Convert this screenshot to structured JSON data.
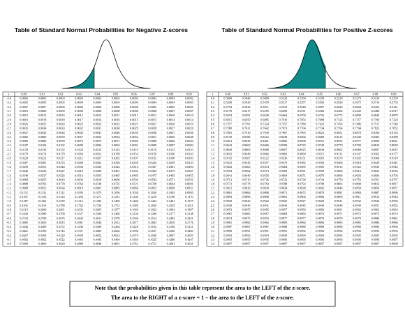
{
  "left": {
    "title": "Table of Standard Normal Probabilities for Negative Z-scores",
    "header": [
      "z",
      "0.00",
      "0.01",
      "0.02",
      "0.03",
      "0.04",
      "0.05",
      "0.06",
      "0.07",
      "0.08",
      "0.09"
    ],
    "rows": [
      [
        "-3.4",
        "0.0003",
        "0.0003",
        "0.0003",
        "0.0003",
        "0.0003",
        "0.0003",
        "0.0003",
        "0.0003",
        "0.0003",
        "0.0002"
      ],
      [
        "-3.3",
        "0.0005",
        "0.0005",
        "0.0005",
        "0.0004",
        "0.0004",
        "0.0004",
        "0.0004",
        "0.0004",
        "0.0004",
        "0.0003"
      ],
      [
        "-3.2",
        "0.0007",
        "0.0007",
        "0.0006",
        "0.0006",
        "0.0006",
        "0.0006",
        "0.0006",
        "0.0005",
        "0.0005",
        "0.0005"
      ],
      [
        "-3.1",
        "0.0010",
        "0.0009",
        "0.0009",
        "0.0009",
        "0.0008",
        "0.0008",
        "0.0008",
        "0.0008",
        "0.0007",
        "0.0007"
      ],
      [
        "-3.0",
        "0.0013",
        "0.0013",
        "0.0013",
        "0.0012",
        "0.0012",
        "0.0011",
        "0.0011",
        "0.0011",
        "0.0010",
        "0.0010"
      ],
      [
        "-2.9",
        "0.0019",
        "0.0018",
        "0.0018",
        "0.0017",
        "0.0016",
        "0.0016",
        "0.0015",
        "0.0015",
        "0.0014",
        "0.0014"
      ],
      [
        "-2.8",
        "0.0026",
        "0.0025",
        "0.0024",
        "0.0023",
        "0.0023",
        "0.0022",
        "0.0021",
        "0.0021",
        "0.0020",
        "0.0019"
      ],
      [
        "-2.7",
        "0.0035",
        "0.0034",
        "0.0033",
        "0.0032",
        "0.0031",
        "0.0030",
        "0.0029",
        "0.0028",
        "0.0027",
        "0.0026"
      ],
      [
        "-2.6",
        "0.0047",
        "0.0045",
        "0.0044",
        "0.0043",
        "0.0041",
        "0.0040",
        "0.0039",
        "0.0038",
        "0.0037",
        "0.0036"
      ],
      [
        "-2.5",
        "0.0062",
        "0.0060",
        "0.0059",
        "0.0057",
        "0.0055",
        "0.0054",
        "0.0052",
        "0.0051",
        "0.0049",
        "0.0048"
      ],
      [
        "-2.4",
        "0.0082",
        "0.0080",
        "0.0078",
        "0.0075",
        "0.0073",
        "0.0071",
        "0.0069",
        "0.0068",
        "0.0066",
        "0.0064"
      ],
      [
        "-2.3",
        "0.0107",
        "0.0104",
        "0.0102",
        "0.0099",
        "0.0096",
        "0.0094",
        "0.0091",
        "0.0089",
        "0.0087",
        "0.0084"
      ],
      [
        "-2.2",
        "0.0139",
        "0.0136",
        "0.0132",
        "0.0129",
        "0.0125",
        "0.0122",
        "0.0119",
        "0.0116",
        "0.0113",
        "0.0110"
      ],
      [
        "-2.1",
        "0.0179",
        "0.0174",
        "0.0170",
        "0.0166",
        "0.0162",
        "0.0158",
        "0.0154",
        "0.0150",
        "0.0146",
        "0.0143"
      ],
      [
        "-2.0",
        "0.0228",
        "0.0222",
        "0.0217",
        "0.0212",
        "0.0207",
        "0.0202",
        "0.0197",
        "0.0192",
        "0.0188",
        "0.0183"
      ],
      [
        "-1.9",
        "0.0287",
        "0.0281",
        "0.0274",
        "0.0268",
        "0.0262",
        "0.0256",
        "0.0250",
        "0.0244",
        "0.0239",
        "0.0233"
      ],
      [
        "-1.8",
        "0.0359",
        "0.0351",
        "0.0344",
        "0.0336",
        "0.0329",
        "0.0322",
        "0.0314",
        "0.0307",
        "0.0301",
        "0.0294"
      ],
      [
        "-1.7",
        "0.0446",
        "0.0436",
        "0.0427",
        "0.0418",
        "0.0409",
        "0.0401",
        "0.0392",
        "0.0384",
        "0.0375",
        "0.0367"
      ],
      [
        "-1.6",
        "0.0548",
        "0.0537",
        "0.0526",
        "0.0516",
        "0.0505",
        "0.0495",
        "0.0485",
        "0.0475",
        "0.0465",
        "0.0455"
      ],
      [
        "-1.5",
        "0.0668",
        "0.0655",
        "0.0643",
        "0.0630",
        "0.0618",
        "0.0606",
        "0.0594",
        "0.0582",
        "0.0571",
        "0.0559"
      ],
      [
        "-1.4",
        "0.0808",
        "0.0793",
        "0.0778",
        "0.0764",
        "0.0749",
        "0.0735",
        "0.0721",
        "0.0708",
        "0.0694",
        "0.0681"
      ],
      [
        "-1.3",
        "0.0968",
        "0.0951",
        "0.0934",
        "0.0918",
        "0.0901",
        "0.0885",
        "0.0869",
        "0.0853",
        "0.0838",
        "0.0823"
      ],
      [
        "-1.2",
        "0.1151",
        "0.1131",
        "0.1112",
        "0.1093",
        "0.1075",
        "0.1056",
        "0.1038",
        "0.1020",
        "0.1003",
        "0.0985"
      ],
      [
        "-1.1",
        "0.1357",
        "0.1335",
        "0.1314",
        "0.1292",
        "0.1271",
        "0.1251",
        "0.1230",
        "0.1210",
        "0.1190",
        "0.1170"
      ],
      [
        "-1.0",
        "0.1587",
        "0.1562",
        "0.1539",
        "0.1515",
        "0.1492",
        "0.1469",
        "0.1446",
        "0.1423",
        "0.1401",
        "0.1379"
      ],
      [
        "-0.9",
        "0.1841",
        "0.1814",
        "0.1788",
        "0.1762",
        "0.1736",
        "0.1711",
        "0.1685",
        "0.1660",
        "0.1635",
        "0.1611"
      ],
      [
        "-0.8",
        "0.2119",
        "0.2090",
        "0.2061",
        "0.2033",
        "0.2005",
        "0.1977",
        "0.1949",
        "0.1922",
        "0.1894",
        "0.1867"
      ],
      [
        "-0.7",
        "0.2420",
        "0.2389",
        "0.2358",
        "0.2327",
        "0.2296",
        "0.2266",
        "0.2236",
        "0.2206",
        "0.2177",
        "0.2148"
      ],
      [
        "-0.6",
        "0.2743",
        "0.2709",
        "0.2676",
        "0.2643",
        "0.2611",
        "0.2578",
        "0.2546",
        "0.2514",
        "0.2483",
        "0.2451"
      ],
      [
        "-0.5",
        "0.3085",
        "0.3050",
        "0.3015",
        "0.2981",
        "0.2946",
        "0.2912",
        "0.2877",
        "0.2843",
        "0.2810",
        "0.2776"
      ],
      [
        "-0.4",
        "0.3446",
        "0.3409",
        "0.3372",
        "0.3336",
        "0.3300",
        "0.3264",
        "0.3228",
        "0.3192",
        "0.3156",
        "0.3121"
      ],
      [
        "-0.3",
        "0.3821",
        "0.3783",
        "0.3745",
        "0.3707",
        "0.3669",
        "0.3632",
        "0.3594",
        "0.3557",
        "0.3520",
        "0.3483"
      ],
      [
        "-0.2",
        "0.4207",
        "0.4168",
        "0.4129",
        "0.4090",
        "0.4052",
        "0.4013",
        "0.3974",
        "0.3936",
        "0.3897",
        "0.3859"
      ],
      [
        "-0.1",
        "0.4602",
        "0.4562",
        "0.4522",
        "0.4483",
        "0.4443",
        "0.4404",
        "0.4364",
        "0.4325",
        "0.4286",
        "0.4247"
      ],
      [
        "-0.0",
        "0.5000",
        "0.4960",
        "0.4920",
        "0.4880",
        "0.4840",
        "0.4801",
        "0.4761",
        "0.4721",
        "0.4681",
        "0.4641"
      ]
    ]
  },
  "right": {
    "title": "Table of Standard Normal Probabilities for Positive Z-scores",
    "header": [
      "z",
      "0.00",
      "0.01",
      "0.02",
      "0.03",
      "0.04",
      "0.05",
      "0.06",
      "0.07",
      "0.08",
      "0.09"
    ],
    "rows": [
      [
        "0.0",
        "0.5000",
        "0.5040",
        "0.5080",
        "0.5120",
        "0.5160",
        "0.5199",
        "0.5239",
        "0.5279",
        "0.5319",
        "0.5359"
      ],
      [
        "0.1",
        "0.5398",
        "0.5438",
        "0.5478",
        "0.5517",
        "0.5557",
        "0.5596",
        "0.5636",
        "0.5675",
        "0.5714",
        "0.5753"
      ],
      [
        "0.2",
        "0.5793",
        "0.5832",
        "0.5871",
        "0.5910",
        "0.5948",
        "0.5987",
        "0.6026",
        "0.6064",
        "0.6103",
        "0.6141"
      ],
      [
        "0.3",
        "0.6179",
        "0.6217",
        "0.6255",
        "0.6293",
        "0.6331",
        "0.6368",
        "0.6406",
        "0.6443",
        "0.6480",
        "0.6517"
      ],
      [
        "0.4",
        "0.6554",
        "0.6591",
        "0.6628",
        "0.6664",
        "0.6700",
        "0.6736",
        "0.6772",
        "0.6808",
        "0.6844",
        "0.6879"
      ],
      [
        "0.5",
        "0.6915",
        "0.6950",
        "0.6985",
        "0.7019",
        "0.7054",
        "0.7088",
        "0.7123",
        "0.7157",
        "0.7190",
        "0.7224"
      ],
      [
        "0.6",
        "0.7257",
        "0.7291",
        "0.7324",
        "0.7357",
        "0.7389",
        "0.7422",
        "0.7454",
        "0.7486",
        "0.7517",
        "0.7549"
      ],
      [
        "0.7",
        "0.7580",
        "0.7611",
        "0.7642",
        "0.7673",
        "0.7704",
        "0.7734",
        "0.7764",
        "0.7794",
        "0.7823",
        "0.7852"
      ],
      [
        "0.8",
        "0.7881",
        "0.7910",
        "0.7939",
        "0.7967",
        "0.7995",
        "0.8023",
        "0.8051",
        "0.8078",
        "0.8106",
        "0.8133"
      ],
      [
        "0.9",
        "0.8159",
        "0.8186",
        "0.8212",
        "0.8238",
        "0.8264",
        "0.8289",
        "0.8315",
        "0.8340",
        "0.8365",
        "0.8389"
      ],
      [
        "1.0",
        "0.8413",
        "0.8438",
        "0.8461",
        "0.8485",
        "0.8508",
        "0.8531",
        "0.8554",
        "0.8577",
        "0.8599",
        "0.8621"
      ],
      [
        "1.1",
        "0.8643",
        "0.8665",
        "0.8686",
        "0.8708",
        "0.8729",
        "0.8749",
        "0.8770",
        "0.8790",
        "0.8810",
        "0.8830"
      ],
      [
        "1.2",
        "0.8849",
        "0.8869",
        "0.8888",
        "0.8907",
        "0.8925",
        "0.8944",
        "0.8962",
        "0.8980",
        "0.8997",
        "0.9015"
      ],
      [
        "1.3",
        "0.9032",
        "0.9049",
        "0.9066",
        "0.9082",
        "0.9099",
        "0.9115",
        "0.9131",
        "0.9147",
        "0.9162",
        "0.9177"
      ],
      [
        "1.4",
        "0.9192",
        "0.9207",
        "0.9222",
        "0.9236",
        "0.9251",
        "0.9265",
        "0.9279",
        "0.9292",
        "0.9306",
        "0.9319"
      ],
      [
        "1.5",
        "0.9332",
        "0.9345",
        "0.9357",
        "0.9370",
        "0.9382",
        "0.9394",
        "0.9406",
        "0.9418",
        "0.9429",
        "0.9441"
      ],
      [
        "1.6",
        "0.9452",
        "0.9463",
        "0.9474",
        "0.9484",
        "0.9495",
        "0.9505",
        "0.9515",
        "0.9525",
        "0.9535",
        "0.9545"
      ],
      [
        "1.7",
        "0.9554",
        "0.9564",
        "0.9573",
        "0.9582",
        "0.9591",
        "0.9599",
        "0.9608",
        "0.9616",
        "0.9625",
        "0.9633"
      ],
      [
        "1.8",
        "0.9641",
        "0.9649",
        "0.9656",
        "0.9664",
        "0.9671",
        "0.9678",
        "0.9686",
        "0.9693",
        "0.9699",
        "0.9706"
      ],
      [
        "1.9",
        "0.9713",
        "0.9719",
        "0.9726",
        "0.9732",
        "0.9738",
        "0.9744",
        "0.9750",
        "0.9756",
        "0.9761",
        "0.9767"
      ],
      [
        "2.0",
        "0.9772",
        "0.9778",
        "0.9783",
        "0.9788",
        "0.9793",
        "0.9798",
        "0.9803",
        "0.9808",
        "0.9812",
        "0.9817"
      ],
      [
        "2.1",
        "0.9821",
        "0.9826",
        "0.9830",
        "0.9834",
        "0.9838",
        "0.9842",
        "0.9846",
        "0.9850",
        "0.9854",
        "0.9857"
      ],
      [
        "2.2",
        "0.9861",
        "0.9864",
        "0.9868",
        "0.9871",
        "0.9875",
        "0.9878",
        "0.9881",
        "0.9884",
        "0.9887",
        "0.9890"
      ],
      [
        "2.3",
        "0.9893",
        "0.9896",
        "0.9898",
        "0.9901",
        "0.9904",
        "0.9906",
        "0.9909",
        "0.9911",
        "0.9913",
        "0.9916"
      ],
      [
        "2.4",
        "0.9918",
        "0.9920",
        "0.9922",
        "0.9925",
        "0.9927",
        "0.9929",
        "0.9931",
        "0.9932",
        "0.9934",
        "0.9936"
      ],
      [
        "2.5",
        "0.9938",
        "0.9940",
        "0.9941",
        "0.9943",
        "0.9945",
        "0.9946",
        "0.9948",
        "0.9949",
        "0.9951",
        "0.9952"
      ],
      [
        "2.6",
        "0.9953",
        "0.9955",
        "0.9956",
        "0.9957",
        "0.9959",
        "0.9960",
        "0.9961",
        "0.9962",
        "0.9963",
        "0.9964"
      ],
      [
        "2.7",
        "0.9965",
        "0.9966",
        "0.9967",
        "0.9968",
        "0.9969",
        "0.9970",
        "0.9971",
        "0.9972",
        "0.9973",
        "0.9974"
      ],
      [
        "2.8",
        "0.9974",
        "0.9975",
        "0.9976",
        "0.9977",
        "0.9977",
        "0.9978",
        "0.9979",
        "0.9979",
        "0.9980",
        "0.9981"
      ],
      [
        "2.9",
        "0.9981",
        "0.9982",
        "0.9982",
        "0.9983",
        "0.9984",
        "0.9984",
        "0.9985",
        "0.9985",
        "0.9986",
        "0.9986"
      ],
      [
        "3.0",
        "0.9987",
        "0.9987",
        "0.9987",
        "0.9988",
        "0.9988",
        "0.9989",
        "0.9989",
        "0.9989",
        "0.9990",
        "0.9990"
      ],
      [
        "3.1",
        "0.9990",
        "0.9991",
        "0.9991",
        "0.9991",
        "0.9992",
        "0.9992",
        "0.9992",
        "0.9992",
        "0.9993",
        "0.9993"
      ],
      [
        "3.2",
        "0.9993",
        "0.9993",
        "0.9994",
        "0.9994",
        "0.9994",
        "0.9994",
        "0.9994",
        "0.9995",
        "0.9995",
        "0.9995"
      ],
      [
        "3.3",
        "0.9995",
        "0.9995",
        "0.9995",
        "0.9996",
        "0.9996",
        "0.9996",
        "0.9996",
        "0.9996",
        "0.9996",
        "0.9997"
      ],
      [
        "3.4",
        "0.9997",
        "0.9997",
        "0.9997",
        "0.9997",
        "0.9997",
        "0.9997",
        "0.9997",
        "0.9997",
        "0.9997",
        "0.9998"
      ]
    ]
  },
  "note": [
    "Note that the probabilities given in this table represent the area to the  LEFT of the z-score.",
    "The area to the RIGHT of a z-score = 1 – the area to the LEFT of the z-score."
  ]
}
